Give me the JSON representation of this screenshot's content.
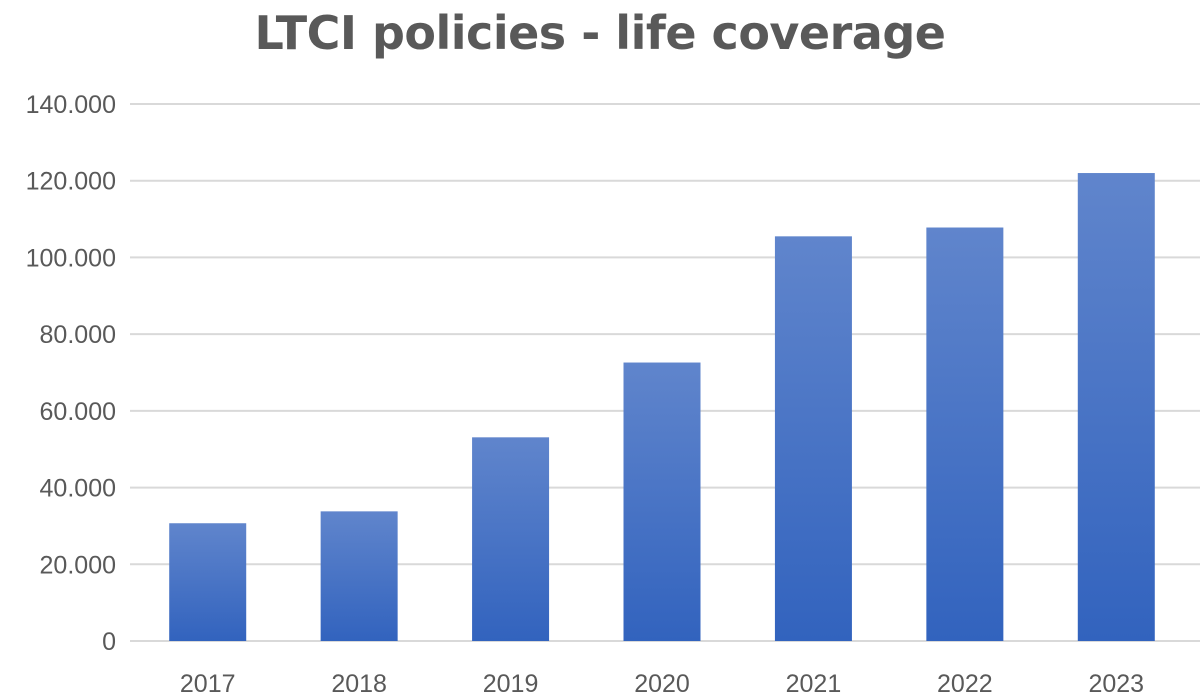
{
  "chart_data": {
    "type": "bar",
    "title": "LTCI policies - life coverage",
    "xlabel": "",
    "ylabel": "",
    "categories": [
      "2017",
      "2018",
      "2019",
      "2020",
      "2021",
      "2022",
      "2023"
    ],
    "values": [
      30700,
      33800,
      53100,
      72600,
      105500,
      107800,
      122000
    ],
    "ylim": [
      0,
      140000
    ],
    "yticks": [
      0,
      20000,
      40000,
      60000,
      80000,
      100000,
      120000,
      140000
    ],
    "ytick_labels": [
      "0",
      "20.000",
      "40.000",
      "60.000",
      "80.000",
      "100.000",
      "120.000",
      "140.000"
    ],
    "grid": true,
    "legend": "none",
    "bar_color_top": "#6085cc",
    "bar_color_bottom": "#3263be",
    "grid_color": "#d9d9d9"
  }
}
